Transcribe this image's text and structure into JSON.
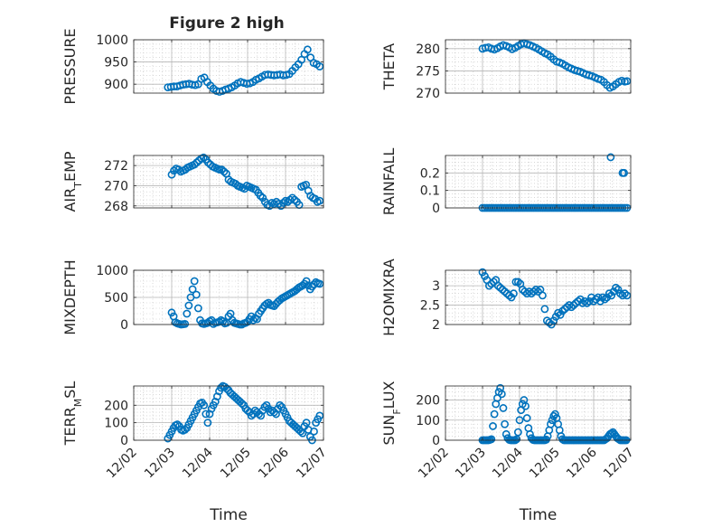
{
  "figure": {
    "title": "Figure 2 high",
    "marker_color": "#0072BD",
    "grid_color": "#b0b0b0",
    "axis_color": "#262626"
  },
  "chart_data": [
    {
      "type": "scatter",
      "panel": "left-1",
      "ylabel": "PRESSURE",
      "ylabel_sub": "",
      "xlim": [
        0,
        5
      ],
      "ylim": [
        880,
        1000
      ],
      "yticks": [
        900,
        950,
        1000
      ],
      "ytick_labels": [
        "900",
        "950",
        "1000"
      ],
      "grid": true,
      "marker": "open-circle",
      "x": [
        0.9,
        0.98,
        1.06,
        1.14,
        1.22,
        1.3,
        1.38,
        1.46,
        1.54,
        1.62,
        1.7,
        1.78,
        1.86,
        1.94,
        2.02,
        2.1,
        2.18,
        2.26,
        2.34,
        2.42,
        2.5,
        2.58,
        2.66,
        2.74,
        2.82,
        2.9,
        2.98,
        3.06,
        3.14,
        3.22,
        3.3,
        3.38,
        3.46,
        3.54,
        3.62,
        3.7,
        3.78,
        3.86,
        3.94,
        4.02,
        4.1,
        4.18,
        4.26,
        4.34,
        4.42,
        4.5,
        4.58,
        4.66,
        4.74,
        4.82,
        4.9
      ],
      "y": [
        893,
        894,
        895,
        895,
        897,
        899,
        900,
        901,
        899,
        898,
        900,
        912,
        915,
        905,
        897,
        890,
        885,
        883,
        885,
        888,
        890,
        893,
        897,
        902,
        905,
        903,
        901,
        902,
        905,
        910,
        913,
        917,
        921,
        922,
        921,
        920,
        921,
        922,
        920,
        921,
        923,
        930,
        938,
        945,
        955,
        968,
        978,
        960,
        948,
        945,
        940
      ]
    },
    {
      "type": "scatter",
      "panel": "right-1",
      "ylabel": "THETA",
      "ylabel_sub": "",
      "xlim": [
        0,
        5
      ],
      "ylim": [
        270,
        282
      ],
      "yticks": [
        270,
        275,
        280
      ],
      "ytick_labels": [
        "270",
        "275",
        "280"
      ],
      "grid": true,
      "marker": "open-circle",
      "x": [
        1.0,
        1.08,
        1.16,
        1.24,
        1.32,
        1.4,
        1.48,
        1.56,
        1.64,
        1.72,
        1.8,
        1.88,
        1.96,
        2.04,
        2.12,
        2.2,
        2.28,
        2.36,
        2.44,
        2.52,
        2.6,
        2.68,
        2.76,
        2.84,
        2.92,
        3.0,
        3.08,
        3.16,
        3.24,
        3.32,
        3.4,
        3.48,
        3.56,
        3.64,
        3.72,
        3.8,
        3.88,
        3.96,
        4.04,
        4.12,
        4.2,
        4.28,
        4.36,
        4.44,
        4.52,
        4.6,
        4.68,
        4.76,
        4.84,
        4.9
      ],
      "y": [
        280,
        280.2,
        280.3,
        280.0,
        279.8,
        280.1,
        280.5,
        280.8,
        280.6,
        280.3,
        279.9,
        280.2,
        280.6,
        281.0,
        281.2,
        281.0,
        280.8,
        280.5,
        280.2,
        279.8,
        279.4,
        279.0,
        278.7,
        278.2,
        277.6,
        277.1,
        276.9,
        276.6,
        276.2,
        275.8,
        275.5,
        275.2,
        275.0,
        274.8,
        274.5,
        274.2,
        274.0,
        273.8,
        273.5,
        273.2,
        273.0,
        272.5,
        271.8,
        271.2,
        271.5,
        272.0,
        272.5,
        272.8,
        272.6,
        272.7
      ]
    },
    {
      "type": "scatter",
      "panel": "left-2",
      "ylabel": "AIR",
      "ylabel_sub": "T",
      "ylabel_suffix": "EMP",
      "xlim": [
        0,
        5
      ],
      "ylim": [
        267.8,
        273
      ],
      "yticks": [
        268,
        270,
        272
      ],
      "ytick_labels": [
        "268",
        "270",
        "272"
      ],
      "grid": true,
      "marker": "open-circle",
      "x": [
        1.0,
        1.06,
        1.12,
        1.18,
        1.24,
        1.3,
        1.36,
        1.42,
        1.48,
        1.54,
        1.6,
        1.66,
        1.72,
        1.78,
        1.84,
        1.9,
        1.96,
        2.02,
        2.08,
        2.14,
        2.2,
        2.26,
        2.32,
        2.38,
        2.44,
        2.5,
        2.56,
        2.62,
        2.68,
        2.74,
        2.8,
        2.86,
        2.92,
        2.98,
        3.04,
        3.1,
        3.16,
        3.22,
        3.28,
        3.34,
        3.4,
        3.46,
        3.52,
        3.58,
        3.64,
        3.7,
        3.76,
        3.82,
        3.88,
        3.94,
        4.0,
        4.06,
        4.12,
        4.18,
        4.24,
        4.3,
        4.36,
        4.42,
        4.48,
        4.54,
        4.6,
        4.66,
        4.72,
        4.78,
        4.84,
        4.9
      ],
      "y": [
        271.1,
        271.5,
        271.7,
        271.6,
        271.4,
        271.5,
        271.6,
        271.8,
        271.9,
        272.0,
        272.1,
        272.3,
        272.5,
        272.7,
        272.8,
        272.6,
        272.3,
        272.1,
        271.9,
        271.8,
        271.7,
        271.6,
        271.6,
        271.4,
        271.2,
        270.6,
        270.4,
        270.3,
        270.2,
        270.0,
        269.9,
        269.8,
        269.7,
        270.0,
        269.9,
        269.8,
        269.7,
        269.6,
        269.3,
        269.0,
        268.8,
        268.4,
        268.1,
        268.0,
        268.3,
        268.2,
        268.4,
        268.2,
        268.0,
        268.3,
        268.5,
        268.4,
        268.6,
        268.8,
        268.6,
        268.4,
        268.1,
        269.9,
        270.0,
        270.1,
        269.5,
        269.0,
        268.8,
        268.7,
        268.4,
        268.5
      ]
    },
    {
      "type": "scatter",
      "panel": "right-2",
      "ylabel": "RAINFALL",
      "ylabel_sub": "",
      "xlim": [
        0,
        5
      ],
      "ylim": [
        0,
        0.3
      ],
      "yticks": [
        0,
        0.1,
        0.2
      ],
      "ytick_labels": [
        "0",
        "0.1",
        "0.2"
      ],
      "grid": true,
      "marker": "open-circle",
      "x": [
        1.0,
        1.06,
        1.12,
        1.18,
        1.24,
        1.3,
        1.36,
        1.42,
        1.48,
        1.54,
        1.6,
        1.66,
        1.72,
        1.78,
        1.84,
        1.9,
        1.96,
        2.02,
        2.08,
        2.14,
        2.2,
        2.26,
        2.32,
        2.38,
        2.44,
        2.5,
        2.56,
        2.62,
        2.68,
        2.74,
        2.8,
        2.86,
        2.92,
        2.98,
        3.04,
        3.1,
        3.16,
        3.22,
        3.28,
        3.34,
        3.4,
        3.46,
        3.52,
        3.58,
        3.64,
        3.7,
        3.76,
        3.82,
        3.88,
        3.94,
        4.0,
        4.06,
        4.12,
        4.18,
        4.24,
        4.3,
        4.36,
        4.42,
        4.48,
        4.54,
        4.6,
        4.66,
        4.72,
        4.78,
        4.84,
        4.9,
        4.46,
        4.78,
        4.82
      ],
      "y": [
        0,
        0,
        0,
        0,
        0,
        0,
        0,
        0,
        0,
        0,
        0,
        0,
        0,
        0,
        0,
        0,
        0,
        0,
        0,
        0,
        0,
        0,
        0,
        0,
        0,
        0,
        0,
        0,
        0,
        0,
        0,
        0,
        0,
        0,
        0,
        0,
        0,
        0,
        0,
        0,
        0,
        0,
        0,
        0,
        0,
        0,
        0,
        0,
        0,
        0,
        0,
        0,
        0,
        0,
        0,
        0,
        0,
        0,
        0,
        0,
        0,
        0,
        0,
        0,
        0,
        0,
        0.29,
        0.2,
        0.2
      ]
    },
    {
      "type": "scatter",
      "panel": "left-3",
      "ylabel": "MIXDEPTH",
      "ylabel_sub": "",
      "xlim": [
        0,
        5
      ],
      "ylim": [
        0,
        1000
      ],
      "yticks": [
        0,
        500,
        1000
      ],
      "ytick_labels": [
        "0",
        "500",
        "1000"
      ],
      "grid": true,
      "marker": "open-circle",
      "x": [
        1.0,
        1.05,
        1.1,
        1.15,
        1.2,
        1.25,
        1.3,
        1.35,
        1.4,
        1.45,
        1.5,
        1.55,
        1.6,
        1.65,
        1.7,
        1.75,
        1.8,
        1.85,
        1.9,
        1.95,
        2.0,
        2.05,
        2.1,
        2.15,
        2.2,
        2.25,
        2.3,
        2.35,
        2.4,
        2.45,
        2.5,
        2.55,
        2.6,
        2.65,
        2.7,
        2.75,
        2.8,
        2.85,
        2.9,
        2.95,
        3.0,
        3.05,
        3.1,
        3.15,
        3.2,
        3.25,
        3.3,
        3.35,
        3.4,
        3.45,
        3.5,
        3.55,
        3.6,
        3.65,
        3.7,
        3.75,
        3.8,
        3.85,
        3.9,
        3.95,
        4.0,
        4.05,
        4.1,
        4.15,
        4.2,
        4.25,
        4.3,
        4.35,
        4.4,
        4.45,
        4.5,
        4.55,
        4.6,
        4.65,
        4.7,
        4.75,
        4.8,
        4.85,
        4.9
      ],
      "y": [
        220,
        150,
        40,
        20,
        10,
        0,
        5,
        10,
        200,
        350,
        500,
        650,
        800,
        550,
        300,
        80,
        20,
        10,
        20,
        30,
        60,
        80,
        10,
        30,
        40,
        50,
        80,
        60,
        20,
        30,
        150,
        200,
        80,
        30,
        20,
        10,
        0,
        0,
        20,
        30,
        50,
        100,
        150,
        80,
        120,
        100,
        200,
        250,
        300,
        350,
        380,
        400,
        360,
        350,
        340,
        380,
        420,
        450,
        480,
        500,
        520,
        540,
        560,
        580,
        600,
        620,
        650,
        680,
        700,
        720,
        750,
        800,
        720,
        650,
        700,
        740,
        780,
        760,
        750
      ]
    },
    {
      "type": "scatter",
      "panel": "right-3",
      "ylabel": "H2OMIXRA",
      "ylabel_sub": "",
      "xlim": [
        0,
        5
      ],
      "ylim": [
        2,
        3.4
      ],
      "yticks": [
        2,
        2.5,
        3
      ],
      "ytick_labels": [
        "2",
        "2.5",
        "3"
      ],
      "grid": true,
      "marker": "open-circle",
      "x": [
        1.0,
        1.06,
        1.12,
        1.18,
        1.24,
        1.3,
        1.36,
        1.42,
        1.48,
        1.54,
        1.6,
        1.66,
        1.72,
        1.78,
        1.84,
        1.9,
        1.96,
        2.02,
        2.08,
        2.14,
        2.2,
        2.26,
        2.32,
        2.38,
        2.44,
        2.5,
        2.56,
        2.62,
        2.68,
        2.74,
        2.8,
        2.86,
        2.92,
        2.98,
        3.04,
        3.1,
        3.16,
        3.22,
        3.28,
        3.34,
        3.4,
        3.46,
        3.52,
        3.58,
        3.64,
        3.7,
        3.76,
        3.82,
        3.88,
        3.94,
        4.0,
        4.06,
        4.12,
        4.18,
        4.24,
        4.3,
        4.36,
        4.42,
        4.48,
        4.54,
        4.6,
        4.66,
        4.72,
        4.78,
        4.84,
        4.9
      ],
      "y": [
        3.35,
        3.25,
        3.15,
        3.0,
        3.05,
        3.1,
        3.15,
        3.0,
        2.95,
        2.9,
        2.85,
        2.8,
        2.75,
        2.7,
        2.8,
        3.1,
        3.1,
        3.05,
        2.9,
        2.85,
        2.8,
        2.85,
        2.8,
        2.85,
        2.9,
        2.85,
        2.9,
        2.75,
        2.4,
        2.1,
        2.05,
        2.0,
        2.1,
        2.2,
        2.3,
        2.25,
        2.35,
        2.4,
        2.45,
        2.5,
        2.45,
        2.5,
        2.55,
        2.6,
        2.65,
        2.55,
        2.6,
        2.55,
        2.6,
        2.7,
        2.6,
        2.65,
        2.7,
        2.6,
        2.7,
        2.65,
        2.7,
        2.8,
        2.75,
        2.85,
        2.95,
        2.9,
        2.8,
        2.75,
        2.8,
        2.75
      ]
    },
    {
      "type": "scatter",
      "panel": "left-4",
      "ylabel": "TERR",
      "ylabel_sub": "M",
      "ylabel_suffix": "SL",
      "xlim": [
        0,
        5
      ],
      "ylim": [
        0,
        310
      ],
      "yticks": [
        0,
        100,
        200
      ],
      "ytick_labels": [
        "0",
        "100",
        "200"
      ],
      "xticks": [
        0,
        1,
        2,
        3,
        4,
        5
      ],
      "xtick_labels": [
        "12/02",
        "12/03",
        "12/04",
        "12/05",
        "12/06",
        "12/07"
      ],
      "xlabel": "Time",
      "grid": true,
      "marker": "open-circle",
      "x": [
        0.9,
        0.95,
        1.0,
        1.05,
        1.1,
        1.15,
        1.2,
        1.25,
        1.3,
        1.35,
        1.4,
        1.45,
        1.5,
        1.55,
        1.6,
        1.65,
        1.7,
        1.75,
        1.8,
        1.85,
        1.9,
        1.95,
        2.0,
        2.05,
        2.1,
        2.15,
        2.2,
        2.25,
        2.3,
        2.35,
        2.4,
        2.45,
        2.5,
        2.55,
        2.6,
        2.65,
        2.7,
        2.75,
        2.8,
        2.85,
        2.9,
        2.95,
        3.0,
        3.05,
        3.1,
        3.15,
        3.2,
        3.25,
        3.3,
        3.35,
        3.4,
        3.45,
        3.5,
        3.55,
        3.6,
        3.65,
        3.7,
        3.75,
        3.8,
        3.85,
        3.9,
        3.95,
        4.0,
        4.05,
        4.1,
        4.15,
        4.2,
        4.25,
        4.3,
        4.35,
        4.4,
        4.45,
        4.5,
        4.55,
        4.6,
        4.65,
        4.7,
        4.75,
        4.8,
        4.85,
        4.9
      ],
      "y": [
        10,
        30,
        50,
        70,
        85,
        90,
        80,
        60,
        55,
        60,
        70,
        90,
        110,
        130,
        150,
        170,
        190,
        210,
        215,
        200,
        150,
        100,
        150,
        180,
        200,
        220,
        250,
        280,
        300,
        310,
        305,
        295,
        285,
        270,
        260,
        250,
        240,
        230,
        220,
        210,
        200,
        180,
        170,
        160,
        140,
        150,
        170,
        160,
        150,
        140,
        170,
        190,
        200,
        180,
        160,
        170,
        160,
        150,
        180,
        200,
        190,
        170,
        150,
        130,
        110,
        100,
        90,
        80,
        70,
        60,
        50,
        40,
        80,
        100,
        60,
        20,
        0,
        50,
        100,
        120,
        140
      ]
    },
    {
      "type": "scatter",
      "panel": "right-4",
      "ylabel": "SUN",
      "ylabel_sub": "F",
      "ylabel_suffix": "LUX",
      "xlim": [
        0,
        5
      ],
      "ylim": [
        0,
        270
      ],
      "yticks": [
        0,
        100,
        200
      ],
      "ytick_labels": [
        "0",
        "100",
        "200"
      ],
      "xticks": [
        0,
        1,
        2,
        3,
        4,
        5
      ],
      "xtick_labels": [
        "12/02",
        "12/03",
        "12/04",
        "12/05",
        "12/06",
        "12/07"
      ],
      "xlabel": "Time",
      "grid": true,
      "marker": "open-circle",
      "x": [
        1.0,
        1.04,
        1.08,
        1.12,
        1.16,
        1.2,
        1.24,
        1.28,
        1.32,
        1.36,
        1.4,
        1.44,
        1.48,
        1.52,
        1.56,
        1.6,
        1.64,
        1.68,
        1.72,
        1.76,
        1.8,
        1.84,
        1.88,
        1.92,
        1.96,
        2.0,
        2.04,
        2.08,
        2.12,
        2.16,
        2.2,
        2.24,
        2.28,
        2.32,
        2.36,
        2.4,
        2.44,
        2.48,
        2.52,
        2.56,
        2.6,
        2.64,
        2.68,
        2.72,
        2.76,
        2.8,
        2.84,
        2.88,
        2.92,
        2.96,
        3.0,
        3.04,
        3.08,
        3.12,
        3.16,
        3.2,
        3.24,
        3.28,
        3.32,
        3.36,
        3.4,
        3.44,
        3.48,
        3.52,
        3.56,
        3.6,
        3.64,
        3.68,
        3.72,
        3.76,
        3.8,
        3.84,
        3.88,
        3.92,
        3.96,
        4.0,
        4.04,
        4.08,
        4.12,
        4.16,
        4.2,
        4.24,
        4.28,
        4.32,
        4.36,
        4.4,
        4.44,
        4.48,
        4.52,
        4.56,
        4.6,
        4.64,
        4.68,
        4.72,
        4.76,
        4.8,
        4.84,
        4.88
      ],
      "y": [
        0,
        0,
        0,
        0,
        0,
        2,
        5,
        70,
        130,
        180,
        210,
        240,
        260,
        230,
        160,
        80,
        30,
        10,
        2,
        0,
        0,
        0,
        0,
        5,
        40,
        100,
        150,
        180,
        200,
        170,
        110,
        60,
        30,
        10,
        2,
        0,
        0,
        0,
        0,
        0,
        0,
        0,
        0,
        3,
        20,
        50,
        80,
        100,
        120,
        130,
        110,
        80,
        50,
        20,
        5,
        0,
        0,
        0,
        0,
        0,
        0,
        0,
        0,
        0,
        0,
        0,
        0,
        0,
        0,
        0,
        0,
        0,
        0,
        0,
        0,
        0,
        0,
        0,
        0,
        0,
        0,
        0,
        0,
        5,
        10,
        20,
        30,
        35,
        40,
        30,
        20,
        10,
        5,
        0,
        0,
        0,
        0,
        0
      ]
    }
  ]
}
